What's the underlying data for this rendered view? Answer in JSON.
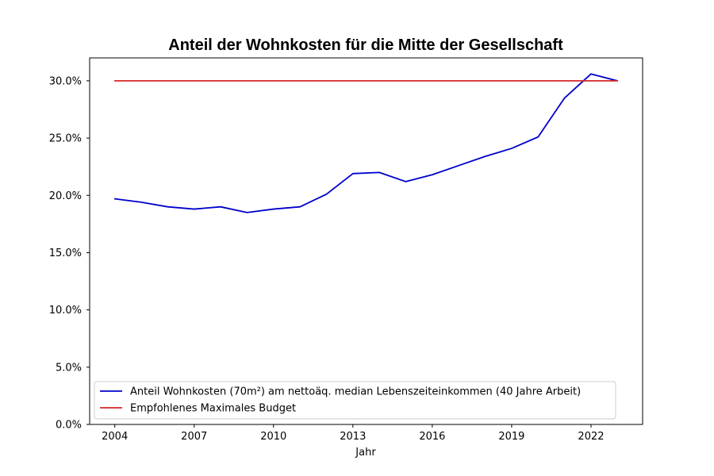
{
  "chart_data": {
    "type": "line",
    "title": "Anteil der Wohnkosten für die Mitte der Gesellschaft",
    "xlabel": "Jahr",
    "ylabel": "",
    "x": [
      2004,
      2005,
      2006,
      2007,
      2008,
      2009,
      2010,
      2011,
      2012,
      2013,
      2014,
      2015,
      2016,
      2017,
      2018,
      2019,
      2020,
      2021,
      2022,
      2023
    ],
    "xlim": [
      2003.05,
      2023.95
    ],
    "ylim": [
      0,
      32
    ],
    "x_ticks": [
      {
        "value": 2004,
        "label": "2004"
      },
      {
        "value": 2007,
        "label": "2007"
      },
      {
        "value": 2010,
        "label": "2010"
      },
      {
        "value": 2013,
        "label": "2013"
      },
      {
        "value": 2016,
        "label": "2016"
      },
      {
        "value": 2019,
        "label": "2019"
      },
      {
        "value": 2022,
        "label": "2022"
      }
    ],
    "y_ticks": [
      {
        "value": 0,
        "label": "0.0%"
      },
      {
        "value": 5,
        "label": "5.0%"
      },
      {
        "value": 10,
        "label": "10.0%"
      },
      {
        "value": 15,
        "label": "15.0%"
      },
      {
        "value": 20,
        "label": "20.0%"
      },
      {
        "value": 25,
        "label": "25.0%"
      },
      {
        "value": 30,
        "label": "30.0%"
      }
    ],
    "series": [
      {
        "name": "Anteil Wohnkosten (70m²) am nettoäq. median Lebenszeiteinkommen (40 Jahre Arbeit)",
        "color": "#0000cc",
        "values": [
          19.7,
          19.4,
          19.0,
          18.8,
          19.0,
          18.5,
          18.8,
          19.0,
          20.1,
          21.9,
          22.0,
          21.2,
          21.8,
          22.6,
          23.4,
          24.1,
          25.1,
          28.5,
          30.6,
          30.0
        ]
      },
      {
        "name": "Empfohlenes Maximales Budget",
        "color": "#d62728",
        "values": [
          30,
          30,
          30,
          30,
          30,
          30,
          30,
          30,
          30,
          30,
          30,
          30,
          30,
          30,
          30,
          30,
          30,
          30,
          30,
          30
        ]
      }
    ],
    "legend_position": "lower-left",
    "grid": false
  }
}
